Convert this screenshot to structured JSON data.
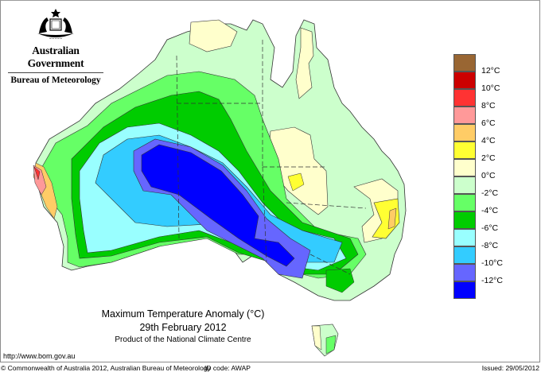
{
  "header": {
    "org": "Australian Government",
    "bureau": "Bureau of Meteorology",
    "crest_icon": "coat-of-arms"
  },
  "title": {
    "line1": "Maximum Temperature Anomaly (°C)",
    "line2": "29th February 2012",
    "line3": "Product of the National Climate Centre"
  },
  "url": "http://www.bom.gov.au",
  "footer": {
    "copyright": "© Commonwealth of Australia 2012, Australian Bureau of Meteorology",
    "id_code": "ID code: AWAP",
    "issued": "Issued: 29/05/2012"
  },
  "legend": {
    "labels": [
      "12°C",
      "10°C",
      "8°C",
      "6°C",
      "4°C",
      "2°C",
      "0°C",
      "-2°C",
      "-4°C",
      "-6°C",
      "-8°C",
      "-10°C",
      "-12°C"
    ],
    "colors": [
      "#996633",
      "#cc0000",
      "#ff3333",
      "#ff9999",
      "#ffcc66",
      "#ffff33",
      "#ffffcc",
      "#ccffcc",
      "#66ff66",
      "#00cc00",
      "#99ffff",
      "#33ccff",
      "#6666ff",
      "#0000ff"
    ]
  },
  "chart_data": {
    "type": "heatmap",
    "title": "Maximum Temperature Anomaly (°C)",
    "subtitle": "29th February 2012",
    "region": "Australia",
    "units": "°C",
    "legend_position": "right",
    "bins": [
      {
        "range": ">12",
        "color": "#996633"
      },
      {
        "range": "10 to 12",
        "color": "#cc0000"
      },
      {
        "range": "8 to 10",
        "color": "#ff3333"
      },
      {
        "range": "6 to 8",
        "color": "#ff9999"
      },
      {
        "range": "4 to 6",
        "color": "#ffcc66"
      },
      {
        "range": "2 to 4",
        "color": "#ffff33"
      },
      {
        "range": "0 to 2",
        "color": "#ffffcc"
      },
      {
        "range": "-2 to 0",
        "color": "#ccffcc"
      },
      {
        "range": "-4 to -2",
        "color": "#66ff66"
      },
      {
        "range": "-6 to -4",
        "color": "#00cc00"
      },
      {
        "range": "-8 to -6",
        "color": "#99ffff"
      },
      {
        "range": "-10 to -8",
        "color": "#33ccff"
      },
      {
        "range": "-12 to -10",
        "color": "#6666ff"
      },
      {
        "range": "<-12",
        "color": "#0000ff"
      }
    ],
    "tick_labels": [
      "12°C",
      "10°C",
      "8°C",
      "6°C",
      "4°C",
      "2°C",
      "0°C",
      "-2°C",
      "-4°C",
      "-6°C",
      "-8°C",
      "-10°C",
      "-12°C"
    ],
    "features": [
      {
        "area": "Central & southern interior (SA, southern NT, eastern WA)",
        "anomaly": "below -12"
      },
      {
        "area": "Far west coast WA",
        "anomaly": "+2 to +10"
      },
      {
        "area": "Queensland & Cape York",
        "anomaly": "0 to +2"
      },
      {
        "area": "NE New South Wales coast",
        "anomaly": "+2 to +6"
      },
      {
        "area": "Victoria",
        "anomaly": "-4 to -10"
      },
      {
        "area": "Tasmania",
        "anomaly": "-4 to +2"
      }
    ]
  }
}
